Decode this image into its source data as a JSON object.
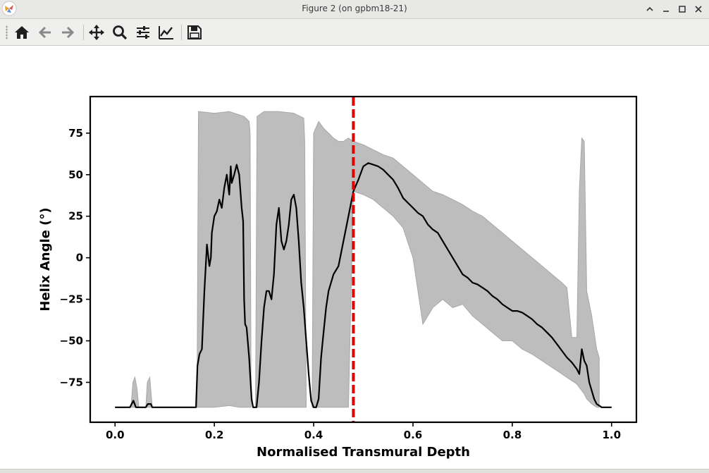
{
  "window": {
    "title": "Figure 2 (on gpbm18-21)",
    "controls": [
      "minimize-up",
      "minimize",
      "maximize",
      "close"
    ]
  },
  "toolbar": {
    "buttons": [
      {
        "name": "home",
        "icon": "home-icon"
      },
      {
        "name": "back",
        "icon": "arrow-left-icon"
      },
      {
        "name": "forward",
        "icon": "arrow-right-icon"
      },
      {
        "name": "pan",
        "icon": "move-icon"
      },
      {
        "name": "zoom",
        "icon": "search-icon"
      },
      {
        "name": "configure-subplots",
        "icon": "sliders-icon"
      },
      {
        "name": "edit-axis",
        "icon": "line-chart-icon"
      },
      {
        "name": "save",
        "icon": "floppy-disk-icon"
      }
    ]
  },
  "colors": {
    "line": "#000000",
    "band": "#bdbdbd",
    "band_edge": "#a8a8a8",
    "marker_line": "#dd0000"
  },
  "chart_data": {
    "type": "line",
    "xlabel": "Normalised Transmural Depth",
    "ylabel": "Helix Angle (°)",
    "xlim": [
      -0.05,
      1.05
    ],
    "ylim": [
      -99,
      97
    ],
    "xticks": [
      "0.0",
      "0.2",
      "0.4",
      "0.6",
      "0.8",
      "1.0"
    ],
    "yticks": [
      "75",
      "50",
      "25",
      "0",
      "−25",
      "−50",
      "−75"
    ],
    "xtick_values": [
      0.0,
      0.2,
      0.4,
      0.6,
      0.8,
      1.0
    ],
    "ytick_values": [
      75,
      50,
      25,
      0,
      -25,
      -50,
      -75
    ],
    "grid": false,
    "vertical_line": {
      "x": 0.48,
      "style": "dashed",
      "color": "#dd0000"
    },
    "mean_line": {
      "x": [
        0.0,
        0.03,
        0.037,
        0.042,
        0.05,
        0.062,
        0.066,
        0.072,
        0.075,
        0.08,
        0.09,
        0.163,
        0.166,
        0.17,
        0.175,
        0.18,
        0.185,
        0.19,
        0.193,
        0.195,
        0.2,
        0.205,
        0.21,
        0.215,
        0.22,
        0.225,
        0.23,
        0.233,
        0.235,
        0.24,
        0.245,
        0.25,
        0.255,
        0.258,
        0.26,
        0.262,
        0.265,
        0.27,
        0.273,
        0.275,
        0.278,
        0.285,
        0.29,
        0.295,
        0.3,
        0.305,
        0.31,
        0.315,
        0.32,
        0.325,
        0.33,
        0.335,
        0.34,
        0.345,
        0.35,
        0.355,
        0.36,
        0.365,
        0.37,
        0.375,
        0.38,
        0.385,
        0.39,
        0.393,
        0.395,
        0.4,
        0.405,
        0.41,
        0.415,
        0.42,
        0.425,
        0.43,
        0.44,
        0.45,
        0.46,
        0.47,
        0.48,
        0.49,
        0.5,
        0.51,
        0.52,
        0.53,
        0.54,
        0.55,
        0.56,
        0.57,
        0.58,
        0.59,
        0.6,
        0.61,
        0.62,
        0.63,
        0.64,
        0.65,
        0.66,
        0.67,
        0.68,
        0.69,
        0.7,
        0.71,
        0.72,
        0.73,
        0.74,
        0.75,
        0.76,
        0.77,
        0.78,
        0.79,
        0.8,
        0.81,
        0.82,
        0.83,
        0.84,
        0.85,
        0.86,
        0.87,
        0.88,
        0.89,
        0.9,
        0.91,
        0.92,
        0.93,
        0.935,
        0.94,
        0.945,
        0.95,
        0.955,
        0.96,
        0.965,
        0.97,
        0.975,
        0.98,
        0.99,
        1.0
      ],
      "y": [
        -90,
        -90,
        -86,
        -90,
        -90,
        -90,
        -88,
        -88,
        -90,
        -90,
        -90,
        -90,
        -65,
        -58,
        -55,
        -20,
        8,
        -5,
        0,
        15,
        25,
        28,
        35,
        30,
        42,
        50,
        38,
        55,
        45,
        50,
        56,
        50,
        30,
        22,
        -25,
        -40,
        -42,
        -60,
        -75,
        -85,
        -90,
        -90,
        -75,
        -50,
        -30,
        -20,
        -20,
        -25,
        -10,
        20,
        30,
        10,
        5,
        10,
        20,
        35,
        38,
        30,
        10,
        -15,
        -30,
        -50,
        -70,
        -80,
        -86,
        -90,
        -90,
        -85,
        -60,
        -45,
        -30,
        -20,
        -10,
        -5,
        10,
        25,
        40,
        47,
        55,
        57,
        56,
        55,
        53,
        50,
        47,
        42,
        36,
        33,
        30,
        27,
        25,
        20,
        17,
        15,
        10,
        5,
        0,
        -5,
        -10,
        -12,
        -15,
        -16,
        -18,
        -20,
        -23,
        -25,
        -28,
        -30,
        -32,
        -32,
        -33,
        -35,
        -37,
        -40,
        -42,
        -45,
        -48,
        -52,
        -56,
        -60,
        -63,
        -67,
        -70,
        -55,
        -62,
        -65,
        -75,
        -80,
        -85,
        -88,
        -89,
        -90,
        -90,
        -90
      ]
    },
    "band_segments": [
      {
        "x": [
          0.032,
          0.036,
          0.04,
          0.044,
          0.048
        ],
        "upper": [
          -90,
          -75,
          -72,
          -78,
          -90
        ],
        "lower": [
          -90,
          -90,
          -90,
          -90,
          -90
        ]
      },
      {
        "x": [
          0.062,
          0.065,
          0.07,
          0.075
        ],
        "upper": [
          -90,
          -75,
          -72,
          -90
        ],
        "lower": [
          -90,
          -90,
          -90,
          -90
        ]
      },
      {
        "x": [
          0.165,
          0.168,
          0.2,
          0.23,
          0.25,
          0.26,
          0.27,
          0.272,
          0.274
        ],
        "upper": [
          -90,
          88,
          87,
          88,
          86,
          85,
          82,
          75,
          -90
        ],
        "lower": [
          -90,
          -90,
          -90,
          -89,
          -90,
          -90,
          -90,
          -90,
          -90
        ]
      },
      {
        "x": [
          0.283,
          0.286,
          0.3,
          0.33,
          0.36,
          0.38,
          0.382,
          0.385
        ],
        "upper": [
          -90,
          85,
          88,
          88,
          87,
          84,
          70,
          -90
        ],
        "lower": [
          -90,
          -90,
          -90,
          -90,
          -90,
          -90,
          -90,
          -90
        ]
      },
      {
        "x": [
          0.397,
          0.4,
          0.41,
          0.42,
          0.43,
          0.44,
          0.45,
          0.46,
          0.47,
          0.48,
          0.5,
          0.52,
          0.54,
          0.56,
          0.58,
          0.6,
          0.62,
          0.64,
          0.66,
          0.68,
          0.7,
          0.72,
          0.74,
          0.76,
          0.78,
          0.8,
          0.82,
          0.84,
          0.86,
          0.88,
          0.9,
          0.91,
          0.92,
          0.93,
          0.935,
          0.94,
          0.945,
          0.95,
          0.96,
          0.97,
          0.975
        ],
        "upper": [
          -90,
          75,
          82,
          78,
          75,
          72,
          70,
          70,
          72,
          70,
          68,
          65,
          62,
          60,
          55,
          50,
          45,
          40,
          38,
          35,
          32,
          28,
          25,
          20,
          15,
          10,
          5,
          0,
          -5,
          -10,
          -15,
          -18,
          -48,
          -48,
          40,
          72,
          70,
          -20,
          -35,
          -55,
          -60
        ],
        "lower": [
          -90,
          -90,
          -90,
          -90,
          -90,
          -90,
          -90,
          -90,
          -90,
          40,
          38,
          35,
          30,
          25,
          18,
          0,
          -40,
          -30,
          -25,
          -30,
          -28,
          -35,
          -40,
          -45,
          -50,
          -50,
          -55,
          -58,
          -62,
          -66,
          -70,
          -72,
          -74,
          -76,
          -78,
          -80,
          -82,
          -85,
          -88,
          -90,
          -90
        ]
      }
    ]
  }
}
